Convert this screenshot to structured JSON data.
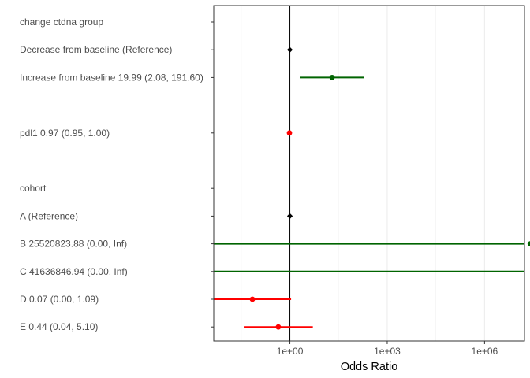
{
  "chart_data": {
    "type": "forest",
    "xlabel": "Odds Ratio",
    "x_scale": "log10",
    "xlim": [
      0.0045,
      17000000.0
    ],
    "x_ticks": [
      {
        "value": 1,
        "label": "1e+00"
      },
      {
        "value": 1000,
        "label": "1e+03"
      },
      {
        "value": 1000000,
        "label": "1e+06"
      }
    ],
    "reference_line": 1,
    "grid": "vertical",
    "rows": [
      {
        "label": "change ctdna group",
        "header": true
      },
      {
        "label": "Decrease from baseline (Reference)",
        "estimate": 1,
        "color": "#000000"
      },
      {
        "label": "Increase from baseline 19.99 (2.08, 191.60)",
        "estimate": 19.99,
        "low": 2.08,
        "high": 191.6,
        "color": "#006400"
      },
      {
        "label": "",
        "spacer": true
      },
      {
        "label": "pdl1 0.97 (0.95, 1.00)",
        "estimate": 0.97,
        "low": 0.95,
        "high": 1.0,
        "color": "#ff0000"
      },
      {
        "label": "",
        "spacer": true
      },
      {
        "label": "cohort",
        "header": true
      },
      {
        "label": "A (Reference)",
        "estimate": 1,
        "color": "#000000"
      },
      {
        "label": "B 25520823.88 (0.00, Inf)",
        "estimate": 25520823.88,
        "low": 0.0,
        "high": "Inf",
        "color": "#006400"
      },
      {
        "label": "C 41636846.94 (0.00, Inf)",
        "estimate": 41636846.94,
        "low": 0.0,
        "high": "Inf",
        "color": "#006400"
      },
      {
        "label": "D 0.07 (0.00, 1.09)",
        "estimate": 0.07,
        "low": 0.0,
        "high": 1.09,
        "color": "#ff0000"
      },
      {
        "label": "E 0.44 (0.04, 5.10)",
        "estimate": 0.44,
        "low": 0.04,
        "high": 5.1,
        "color": "#ff0000"
      }
    ]
  }
}
